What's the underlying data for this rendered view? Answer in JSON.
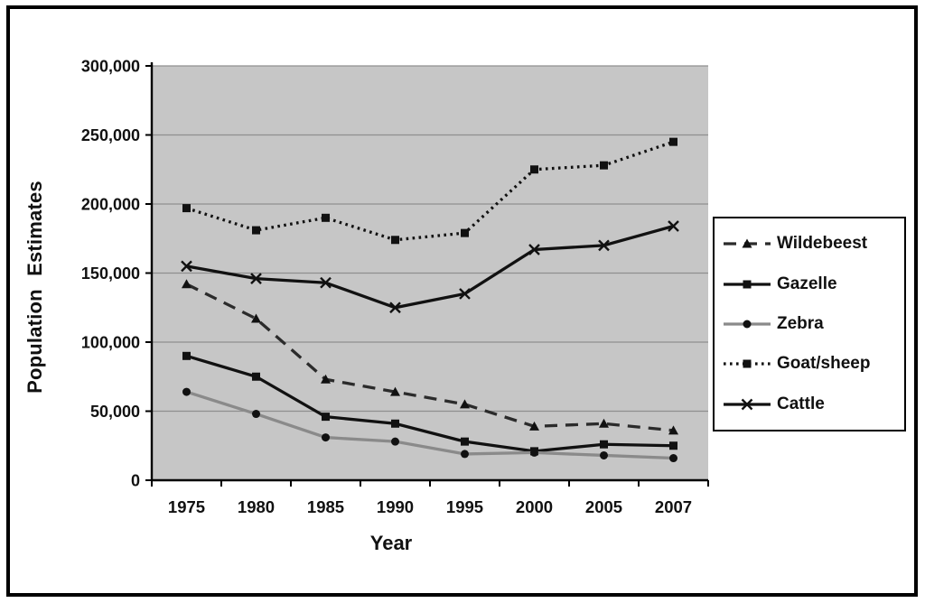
{
  "figure": {
    "background": "#ffffff",
    "border_color": "#000000"
  },
  "chart_data": {
    "type": "line",
    "title": "",
    "xlabel": "Year",
    "ylabel": "Population Estimates",
    "categories": [
      "1975",
      "1980",
      "1985",
      "1990",
      "1995",
      "2000",
      "2005",
      "2007"
    ],
    "ylim": [
      0,
      300000
    ],
    "y_ticks": [
      0,
      50000,
      100000,
      150000,
      200000,
      250000,
      300000
    ],
    "y_tick_labels": [
      "0",
      "50,000",
      "100,000",
      "150,000",
      "200,000",
      "250,000",
      "300,000"
    ],
    "grid": true,
    "plot_bg": "#c6c6c6",
    "gridline_color": "#8f8f8f",
    "axis_color": "#000000",
    "legend_position": "right",
    "series": [
      {
        "name": "Wildebeest",
        "line": "dashed",
        "marker": "triangle",
        "color": "#2b2b2b",
        "marker_color": "#111111",
        "values": [
          142000,
          117000,
          73000,
          64000,
          55000,
          39000,
          41000,
          36000
        ]
      },
      {
        "name": "Gazelle",
        "line": "solid",
        "marker": "square",
        "color": "#111111",
        "marker_color": "#111111",
        "values": [
          90000,
          75000,
          46000,
          41000,
          28000,
          21000,
          26000,
          25000
        ]
      },
      {
        "name": "Zebra",
        "line": "solid",
        "marker": "circle",
        "color": "#8a8a8a",
        "marker_color": "#111111",
        "values": [
          64000,
          48000,
          31000,
          28000,
          19000,
          20000,
          18000,
          16000
        ]
      },
      {
        "name": "Goat/sheep",
        "line": "dotted",
        "marker": "square",
        "color": "#111111",
        "marker_color": "#111111",
        "values": [
          197000,
          181000,
          190000,
          174000,
          179000,
          225000,
          228000,
          245000
        ]
      },
      {
        "name": "Cattle",
        "line": "solid",
        "marker": "x",
        "color": "#111111",
        "marker_color": "#111111",
        "values": [
          155000,
          146000,
          143000,
          125000,
          135000,
          167000,
          170000,
          184000
        ]
      }
    ]
  }
}
